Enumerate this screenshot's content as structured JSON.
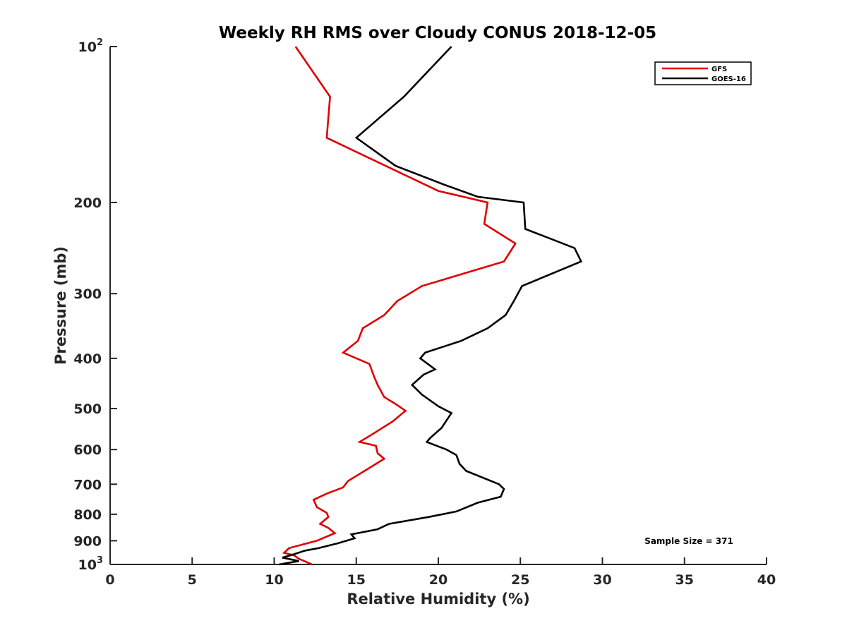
{
  "chart_data": {
    "type": "line",
    "title": "Weekly RH RMS over Cloudy CONUS 2018-12-05",
    "xlabel": "Relative Humidity (%)",
    "ylabel": "Pressure (mb)",
    "xlim": [
      0,
      40
    ],
    "ylim": [
      100,
      1000
    ],
    "yscale": "log",
    "yreversed": true,
    "xticks": [
      "0",
      "5",
      "10",
      "15",
      "20",
      "25",
      "30",
      "35",
      "40"
    ],
    "yticks_plain": [
      {
        "value": 200,
        "label": "200"
      },
      {
        "value": 300,
        "label": "300"
      },
      {
        "value": 400,
        "label": "400"
      },
      {
        "value": 500,
        "label": "500"
      },
      {
        "value": 600,
        "label": "600"
      },
      {
        "value": 700,
        "label": "700"
      },
      {
        "value": 800,
        "label": "800"
      },
      {
        "value": 900,
        "label": "900"
      }
    ],
    "yticks_power": [
      {
        "value": 100,
        "base": "10",
        "exp": "2"
      },
      {
        "value": 1000,
        "base": "10",
        "exp": "3"
      }
    ],
    "legend_position": "top-right",
    "grid": false,
    "annotation": "Sample Size = 371",
    "series": [
      {
        "name": "GFS",
        "color": "#e00000",
        "points": [
          [
            11.3,
            100
          ],
          [
            13.4,
            125
          ],
          [
            13.2,
            150
          ],
          [
            20.0,
            190
          ],
          [
            23.0,
            200
          ],
          [
            22.8,
            220
          ],
          [
            24.7,
            240
          ],
          [
            24.0,
            260
          ],
          [
            19.0,
            290
          ],
          [
            17.5,
            310
          ],
          [
            16.7,
            330
          ],
          [
            15.4,
            350
          ],
          [
            15.1,
            370
          ],
          [
            14.2,
            390
          ],
          [
            15.8,
            410
          ],
          [
            16.1,
            435
          ],
          [
            16.3,
            450
          ],
          [
            16.7,
            475
          ],
          [
            17.4,
            490
          ],
          [
            18.0,
            505
          ],
          [
            17.2,
            530
          ],
          [
            16.0,
            560
          ],
          [
            15.2,
            580
          ],
          [
            16.2,
            590
          ],
          [
            16.3,
            610
          ],
          [
            16.7,
            625
          ],
          [
            15.5,
            660
          ],
          [
            14.5,
            690
          ],
          [
            14.2,
            710
          ],
          [
            13.2,
            730
          ],
          [
            12.4,
            750
          ],
          [
            12.6,
            775
          ],
          [
            13.2,
            795
          ],
          [
            13.3,
            810
          ],
          [
            12.8,
            835
          ],
          [
            13.3,
            850
          ],
          [
            13.7,
            870
          ],
          [
            12.6,
            900
          ],
          [
            10.9,
            930
          ],
          [
            10.6,
            950
          ],
          [
            11.2,
            960
          ],
          [
            11.5,
            975
          ],
          [
            12.3,
            1000
          ]
        ]
      },
      {
        "name": "GOES-16",
        "color": "#000000",
        "points": [
          [
            20.8,
            100
          ],
          [
            17.9,
            125
          ],
          [
            15.0,
            150
          ],
          [
            17.4,
            170
          ],
          [
            20.4,
            185
          ],
          [
            22.4,
            195
          ],
          [
            25.2,
            200
          ],
          [
            25.3,
            225
          ],
          [
            28.3,
            245
          ],
          [
            28.7,
            260
          ],
          [
            25.1,
            290
          ],
          [
            24.6,
            310
          ],
          [
            24.1,
            330
          ],
          [
            23.0,
            350
          ],
          [
            21.4,
            370
          ],
          [
            19.2,
            390
          ],
          [
            18.9,
            400
          ],
          [
            19.8,
            420
          ],
          [
            19.1,
            430
          ],
          [
            18.4,
            450
          ],
          [
            19.0,
            470
          ],
          [
            20.0,
            495
          ],
          [
            20.8,
            510
          ],
          [
            20.2,
            545
          ],
          [
            19.5,
            570
          ],
          [
            19.3,
            580
          ],
          [
            20.5,
            600
          ],
          [
            21.1,
            615
          ],
          [
            21.3,
            640
          ],
          [
            21.7,
            660
          ],
          [
            23.7,
            700
          ],
          [
            24.0,
            715
          ],
          [
            23.8,
            740
          ],
          [
            22.4,
            760
          ],
          [
            21.1,
            790
          ],
          [
            19.4,
            810
          ],
          [
            17.0,
            835
          ],
          [
            16.3,
            855
          ],
          [
            14.7,
            875
          ],
          [
            14.9,
            890
          ],
          [
            13.9,
            910
          ],
          [
            12.7,
            930
          ],
          [
            11.9,
            940
          ],
          [
            11.0,
            960
          ],
          [
            10.5,
            970
          ],
          [
            11.5,
            985
          ],
          [
            10.3,
            1000
          ]
        ]
      }
    ]
  }
}
